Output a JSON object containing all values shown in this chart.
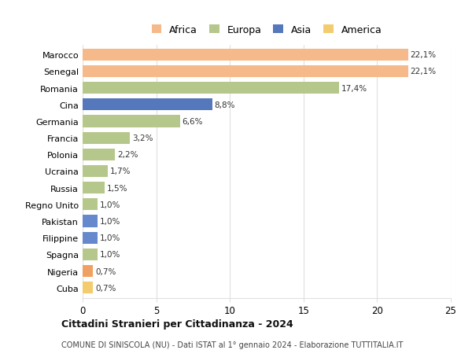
{
  "categories": [
    "Cuba",
    "Nigeria",
    "Spagna",
    "Filippine",
    "Pakistan",
    "Regno Unito",
    "Russia",
    "Ucraina",
    "Polonia",
    "Francia",
    "Germania",
    "Cina",
    "Romania",
    "Senegal",
    "Marocco"
  ],
  "values": [
    0.7,
    0.7,
    1.0,
    1.0,
    1.0,
    1.0,
    1.5,
    1.7,
    2.2,
    3.2,
    6.6,
    8.8,
    17.4,
    22.1,
    22.1
  ],
  "labels": [
    "0,7%",
    "0,7%",
    "1,0%",
    "1,0%",
    "1,0%",
    "1,0%",
    "1,5%",
    "1,7%",
    "2,2%",
    "3,2%",
    "6,6%",
    "8,8%",
    "17,4%",
    "22,1%",
    "22,1%"
  ],
  "colors": [
    "#f2cc6e",
    "#f0a060",
    "#b5c78a",
    "#6688cc",
    "#6688cc",
    "#b5c78a",
    "#b5c78a",
    "#b5c78a",
    "#b5c78a",
    "#b5c78a",
    "#b5c78a",
    "#5577bb",
    "#b5c78a",
    "#f5b98a",
    "#f5b98a"
  ],
  "legend_labels": [
    "Africa",
    "Europa",
    "Asia",
    "America"
  ],
  "legend_colors": [
    "#f5b98a",
    "#b5c78a",
    "#5577bb",
    "#f2cc6e"
  ],
  "title": "Cittadini Stranieri per Cittadinanza - 2024",
  "subtitle": "COMUNE DI SINISCOLA (NU) - Dati ISTAT al 1° gennaio 2024 - Elaborazione TUTTITALIA.IT",
  "xlim": [
    0,
    25
  ],
  "xticks": [
    0,
    5,
    10,
    15,
    20,
    25
  ],
  "background_color": "#ffffff",
  "grid_color": "#e0e0e0"
}
